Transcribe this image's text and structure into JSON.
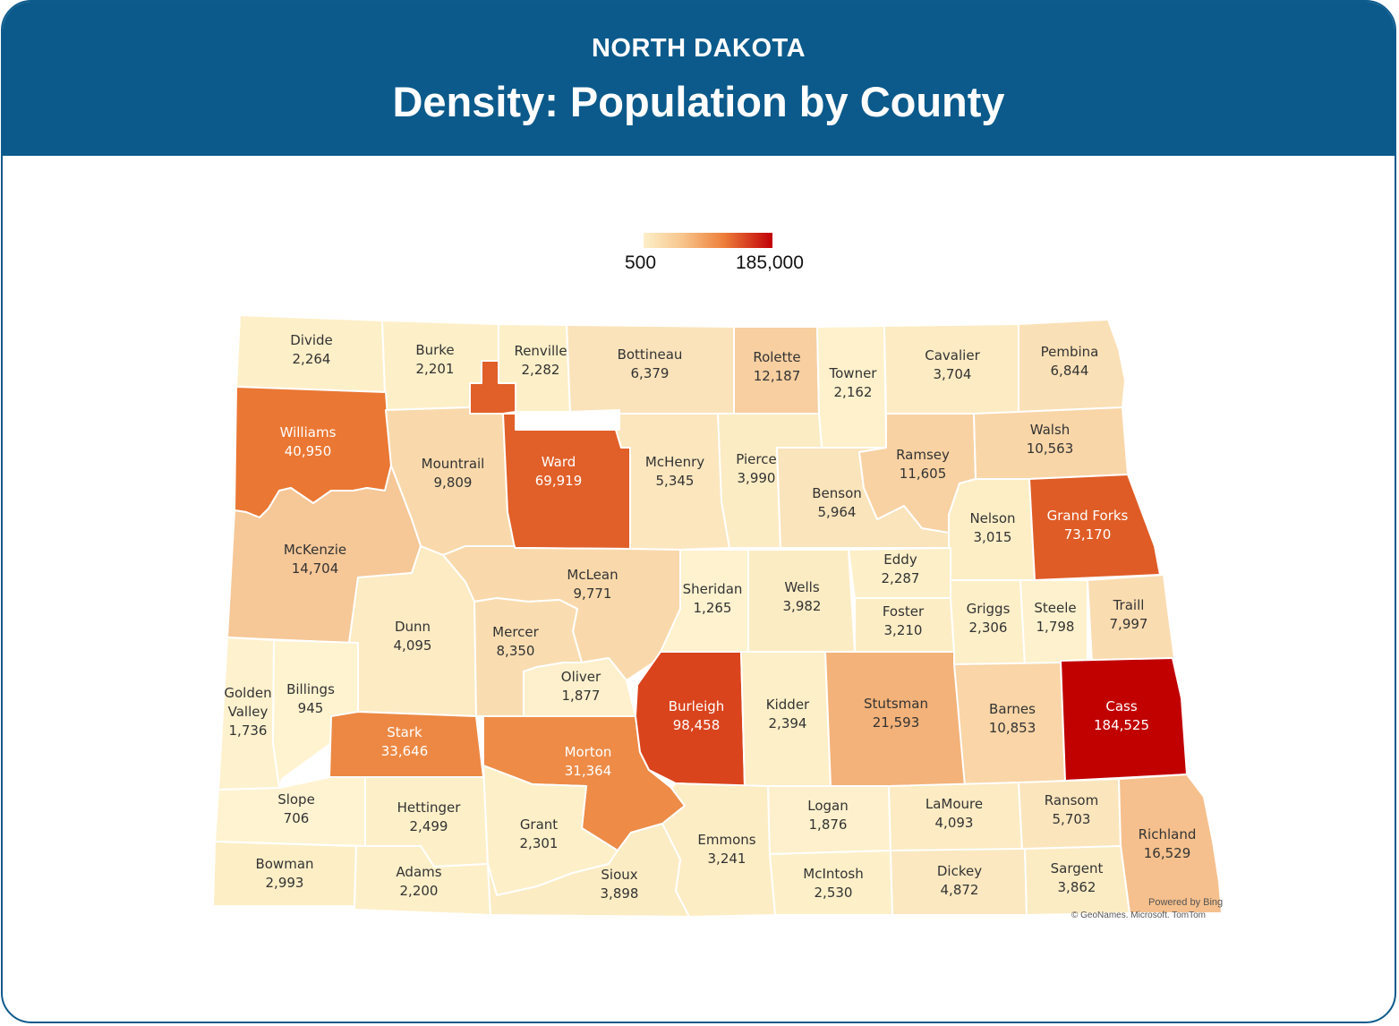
{
  "header": {
    "state": "NORTH DAKOTA",
    "title": "Density: Population by County"
  },
  "legend": {
    "min_label": "500",
    "max_label": "185,000",
    "min_value": 500,
    "max_value": 185000,
    "colors": [
      "#fdefc9",
      "#f7c58c",
      "#ee7f3a",
      "#c10008"
    ]
  },
  "attribution": {
    "powered_by": "Powered by Bing",
    "copyright": "© GeoNames, Microsoft, TomTom"
  },
  "counties": [
    {
      "name": "Divide",
      "pop": "2,264",
      "value": 2264,
      "color": "#fdefc8"
    },
    {
      "name": "Burke",
      "pop": "2,201",
      "value": 2201,
      "color": "#fdefc8"
    },
    {
      "name": "Renville",
      "pop": "2,282",
      "value": 2282,
      "color": "#fdefc8"
    },
    {
      "name": "Bottineau",
      "pop": "6,379",
      "value": 6379,
      "color": "#fae3bb"
    },
    {
      "name": "Rolette",
      "pop": "12,187",
      "value": 12187,
      "color": "#f7cfa0"
    },
    {
      "name": "Towner",
      "pop": "2,162",
      "value": 2162,
      "color": "#fef1cc"
    },
    {
      "name": "Cavalier",
      "pop": "3,704",
      "value": 3704,
      "color": "#fcebc3"
    },
    {
      "name": "Pembina",
      "pop": "6,844",
      "value": 6844,
      "color": "#fae0b6"
    },
    {
      "name": "Williams",
      "pop": "40,950",
      "value": 40950,
      "color": "#ea7733",
      "light": true
    },
    {
      "name": "Mountrail",
      "pop": "9,809",
      "value": 9809,
      "color": "#f9d9ab"
    },
    {
      "name": "Ward",
      "pop": "69,919",
      "value": 69919,
      "color": "#e15f28",
      "light": true
    },
    {
      "name": "McHenry",
      "pop": "5,345",
      "value": 5345,
      "color": "#fbe6be"
    },
    {
      "name": "Pierce",
      "pop": "3,990",
      "value": 3990,
      "color": "#fcecc4"
    },
    {
      "name": "Benson",
      "pop": "5,964",
      "value": 5964,
      "color": "#fae4bb"
    },
    {
      "name": "Ramsey",
      "pop": "11,605",
      "value": 11605,
      "color": "#f8d2a3"
    },
    {
      "name": "Walsh",
      "pop": "10,563",
      "value": 10563,
      "color": "#f9d6a8"
    },
    {
      "name": "Nelson",
      "pop": "3,015",
      "value": 3015,
      "color": "#fdeec6"
    },
    {
      "name": "Grand Forks",
      "pop": "73,170",
      "value": 73170,
      "color": "#df5c26",
      "light": true
    },
    {
      "name": "McKenzie",
      "pop": "14,704",
      "value": 14704,
      "color": "#f6c797"
    },
    {
      "name": "McLean",
      "pop": "9,771",
      "value": 9771,
      "color": "#f9d9ab"
    },
    {
      "name": "Sheridan",
      "pop": "1,265",
      "value": 1265,
      "color": "#fef2cf"
    },
    {
      "name": "Wells",
      "pop": "3,982",
      "value": 3982,
      "color": "#fcecc4"
    },
    {
      "name": "Eddy",
      "pop": "2,287",
      "value": 2287,
      "color": "#fdefc8"
    },
    {
      "name": "Foster",
      "pop": "3,210",
      "value": 3210,
      "color": "#fdedc5"
    },
    {
      "name": "Griggs",
      "pop": "2,306",
      "value": 2306,
      "color": "#fdefc8"
    },
    {
      "name": "Steele",
      "pop": "1,798",
      "value": 1798,
      "color": "#fef1cd"
    },
    {
      "name": "Traill",
      "pop": "7,997",
      "value": 7997,
      "color": "#fadcb1"
    },
    {
      "name": "Dunn",
      "pop": "4,095",
      "value": 4095,
      "color": "#fcebc3"
    },
    {
      "name": "Mercer",
      "pop": "8,350",
      "value": 8350,
      "color": "#f9ddb1"
    },
    {
      "name": "Oliver",
      "pop": "1,877",
      "value": 1877,
      "color": "#fef0cc"
    },
    {
      "name": "Golden Valley",
      "pop": "1,736",
      "value": 1736,
      "color": "#fef1cd"
    },
    {
      "name": "Billings",
      "pop": "945",
      "value": 945,
      "color": "#fff3d0"
    },
    {
      "name": "Stark",
      "pop": "33,646",
      "value": 33646,
      "color": "#ec8843",
      "light": true
    },
    {
      "name": "Morton",
      "pop": "31,364",
      "value": 31364,
      "color": "#ed8b47",
      "light": true
    },
    {
      "name": "Burleigh",
      "pop": "98,458",
      "value": 98458,
      "color": "#d9441d",
      "light": true
    },
    {
      "name": "Kidder",
      "pop": "2,394",
      "value": 2394,
      "color": "#fdefc8"
    },
    {
      "name": "Stutsman",
      "pop": "21,593",
      "value": 21593,
      "color": "#f3b279"
    },
    {
      "name": "Barnes",
      "pop": "10,853",
      "value": 10853,
      "color": "#f9d5a7"
    },
    {
      "name": "Cass",
      "pop": "184,525",
      "value": 184525,
      "color": "#c10000",
      "light": true
    },
    {
      "name": "Slope",
      "pop": "706",
      "value": 706,
      "color": "#fff3d1"
    },
    {
      "name": "Hettinger",
      "pop": "2,499",
      "value": 2499,
      "color": "#fdefc8"
    },
    {
      "name": "Grant",
      "pop": "2,301",
      "value": 2301,
      "color": "#fdefc8"
    },
    {
      "name": "Emmons",
      "pop": "3,241",
      "value": 3241,
      "color": "#fdedc5"
    },
    {
      "name": "Logan",
      "pop": "1,876",
      "value": 1876,
      "color": "#fef0cc"
    },
    {
      "name": "LaMoure",
      "pop": "4,093",
      "value": 4093,
      "color": "#fcebc3"
    },
    {
      "name": "Ransom",
      "pop": "5,703",
      "value": 5703,
      "color": "#fbe5bc"
    },
    {
      "name": "Richland",
      "pop": "16,529",
      "value": 16529,
      "color": "#f5c08d"
    },
    {
      "name": "Bowman",
      "pop": "2,993",
      "value": 2993,
      "color": "#fdeec6"
    },
    {
      "name": "Adams",
      "pop": "2,200",
      "value": 2200,
      "color": "#fdefc8"
    },
    {
      "name": "Sioux",
      "pop": "3,898",
      "value": 3898,
      "color": "#fcecc4"
    },
    {
      "name": "McIntosh",
      "pop": "2,530",
      "value": 2530,
      "color": "#fdefc8"
    },
    {
      "name": "Dickey",
      "pop": "4,872",
      "value": 4872,
      "color": "#fbe8c0"
    },
    {
      "name": "Sargent",
      "pop": "3,862",
      "value": 3862,
      "color": "#fcecc4"
    }
  ]
}
